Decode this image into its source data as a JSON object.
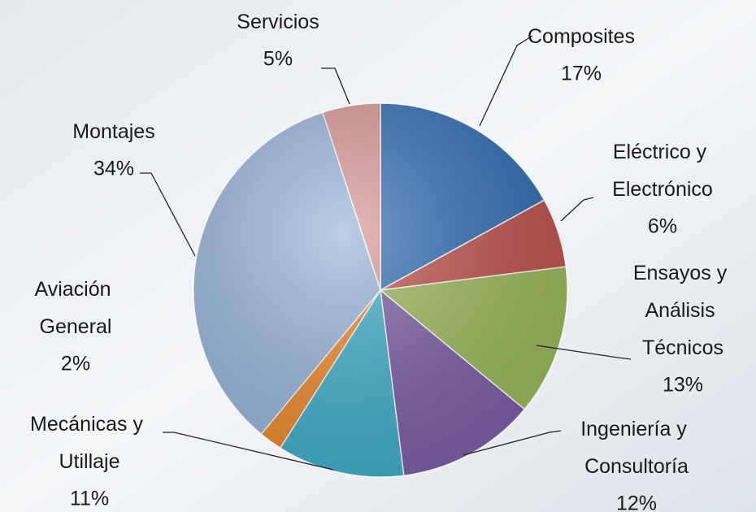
{
  "chart_data": {
    "type": "pie",
    "categories": [
      "Composites",
      "Eléctrico y Electrónico",
      "Ensayos y Análisis Técnicos",
      "Ingeniería y Consultoría",
      "Mecánicas y Utillaje",
      "Aviación General",
      "Montajes",
      "Servicios"
    ],
    "values": [
      17,
      6,
      13,
      12,
      11,
      2,
      34,
      5
    ],
    "value_labels": [
      "17%",
      "6%",
      "13%",
      "12%",
      "11%",
      "2%",
      "34%",
      "5%"
    ],
    "colors": [
      "#2f6db5",
      "#c0504d",
      "#9bbb59",
      "#7b5ea7",
      "#3fb0cc",
      "#f08a2a",
      "#98b6dc",
      "#da9896"
    ]
  }
}
